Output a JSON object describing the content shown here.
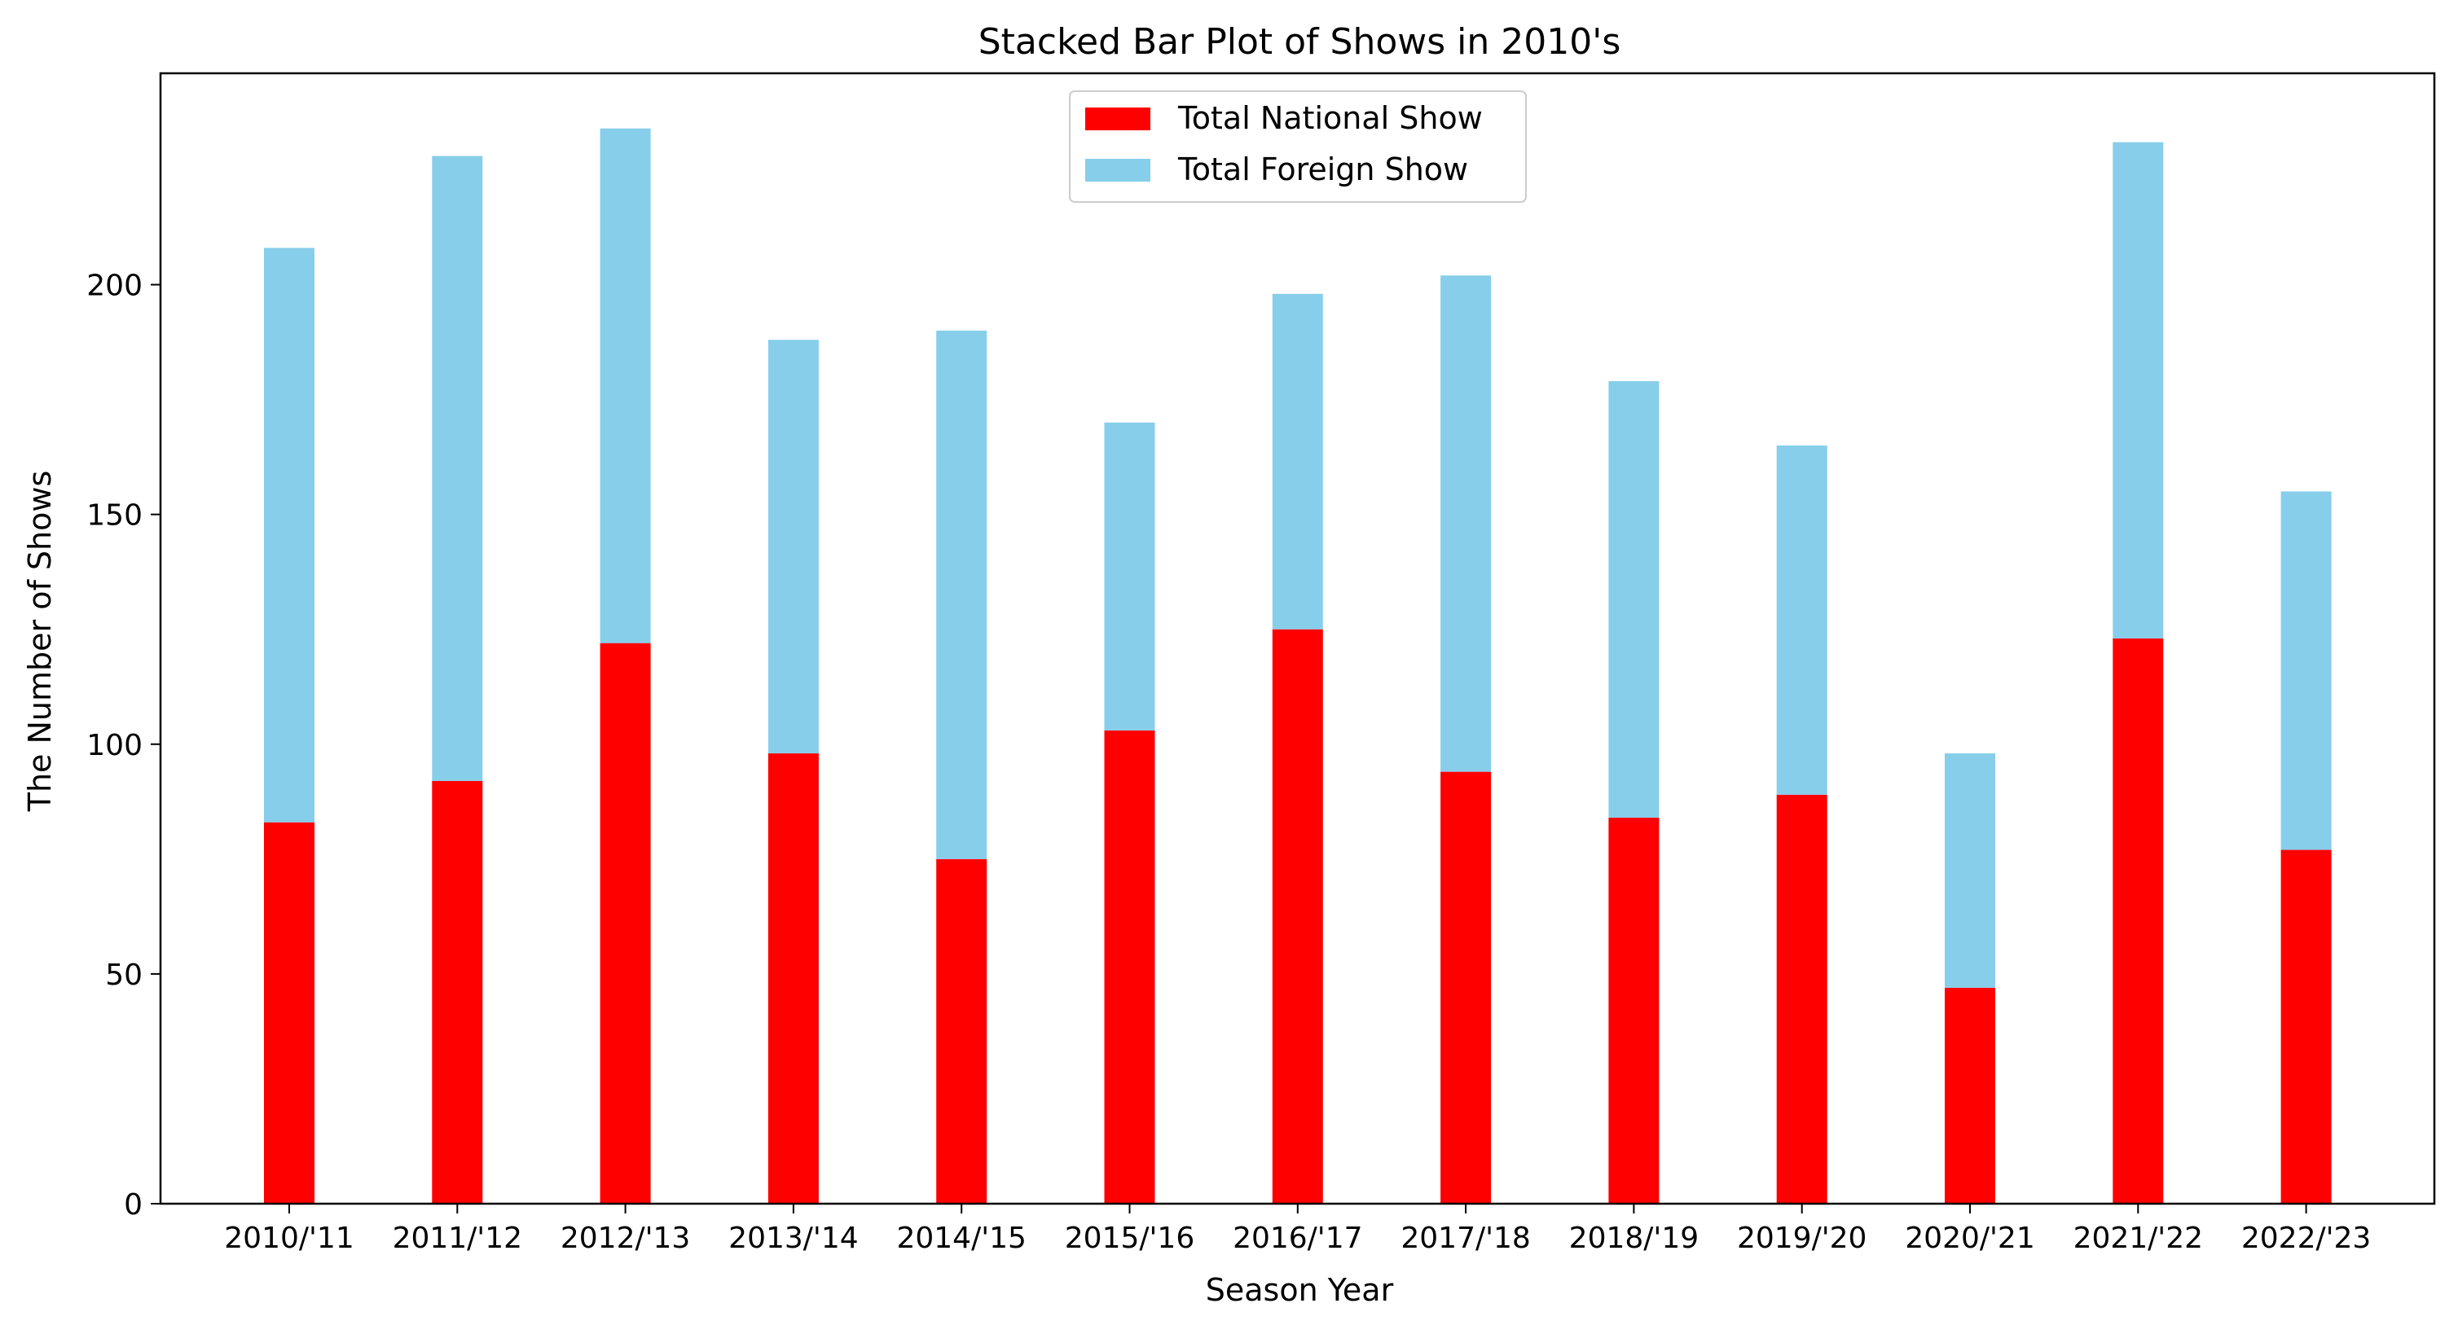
{
  "chart_data": {
    "type": "bar",
    "stacked": true,
    "title": "Stacked Bar Plot of Shows in 2010's",
    "xlabel": "Season Year",
    "ylabel": "The Number of Shows",
    "ylim": [
      0,
      246
    ],
    "yticks": [
      0,
      50,
      100,
      150,
      200
    ],
    "grid": false,
    "legend_position": "top-center",
    "categories": [
      "2010/'11",
      "2011/'12",
      "2012/'13",
      "2013/'14",
      "2014/'15",
      "2015/'16",
      "2016/'17",
      "2017/'18",
      "2018/'19",
      "2019/'20",
      "2020/'21",
      "2021/'22",
      "2022/'23"
    ],
    "series": [
      {
        "name": "Total National Show",
        "color": "#ff0000",
        "values": [
          83,
          92,
          122,
          98,
          75,
          103,
          125,
          94,
          84,
          89,
          47,
          123,
          77
        ]
      },
      {
        "name": "Total Foreign Show",
        "color": "#87ceeb",
        "values": [
          125,
          136,
          112,
          90,
          115,
          67,
          73,
          108,
          95,
          76,
          51,
          108,
          78
        ]
      }
    ]
  }
}
